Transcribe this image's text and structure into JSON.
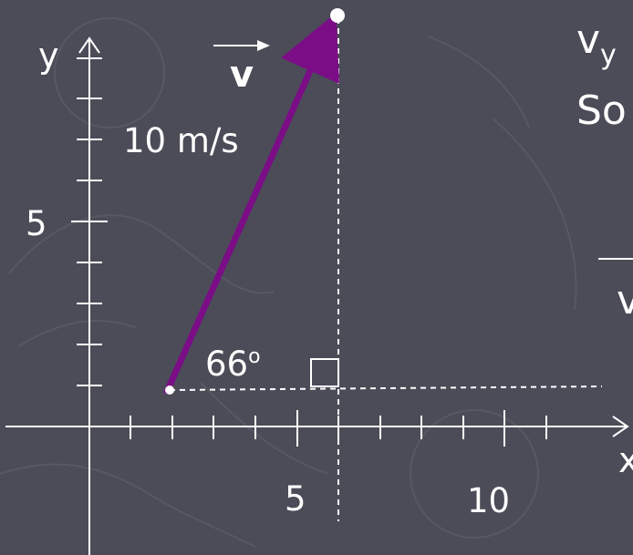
{
  "colors": {
    "background": "#4b4c58",
    "axis": "#ffffff",
    "vector": "#7b0d86",
    "text": "#ffffff",
    "watermark": "#5a5b67"
  },
  "labels": {
    "y_axis": "y",
    "x_axis": "x",
    "vector_name": "v",
    "magnitude": "10 m/s",
    "angle": "66",
    "angle_unit": "o",
    "y_tick_5": "5",
    "x_tick_5": "5",
    "x_tick_10": "10"
  },
  "side_text": {
    "line1_main": "v",
    "line1_sub": "y",
    "line2": "So",
    "line3": "v"
  },
  "diagram_data": {
    "vector": {
      "tail": [
        2,
        1
      ],
      "magnitude": 10,
      "angle_deg": 66
    },
    "units_note": "tail at roughly (2,1) on the grid"
  }
}
